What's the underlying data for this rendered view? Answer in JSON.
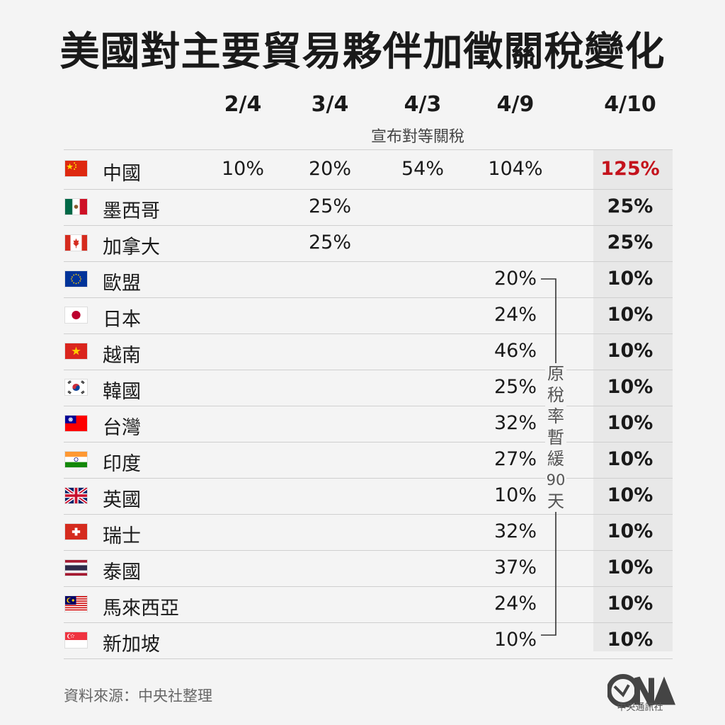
{
  "chart_data": {
    "type": "table",
    "title": "美國對主要貿易夥伴加徵關稅變化",
    "columns": [
      {
        "label": "2/4",
        "note": ""
      },
      {
        "label": "3/4",
        "note": ""
      },
      {
        "label": "4/3",
        "note": "宣布對等關稅"
      },
      {
        "label": "4/9",
        "note": ""
      },
      {
        "label": "4/10",
        "note": ""
      }
    ],
    "rows": [
      {
        "country": "中國",
        "flag": "china-flag",
        "values": [
          "10%",
          "20%",
          "54%",
          "104%"
        ],
        "latest": "125%",
        "highlight": "#c4121c"
      },
      {
        "country": "墨西哥",
        "flag": "mexico-flag",
        "values": [
          "",
          "25%",
          "",
          ""
        ],
        "latest": "25%"
      },
      {
        "country": "加拿大",
        "flag": "canada-flag",
        "values": [
          "",
          "25%",
          "",
          ""
        ],
        "latest": "25%"
      },
      {
        "country": "歐盟",
        "flag": "eu-flag",
        "values": [
          "",
          "",
          "",
          "20%"
        ],
        "latest": "10%"
      },
      {
        "country": "日本",
        "flag": "japan-flag",
        "values": [
          "",
          "",
          "",
          "24%"
        ],
        "latest": "10%"
      },
      {
        "country": "越南",
        "flag": "vietnam-flag",
        "values": [
          "",
          "",
          "",
          "46%"
        ],
        "latest": "10%"
      },
      {
        "country": "韓國",
        "flag": "korea-flag",
        "values": [
          "",
          "",
          "",
          "25%"
        ],
        "latest": "10%"
      },
      {
        "country": "台灣",
        "flag": "taiwan-flag",
        "values": [
          "",
          "",
          "",
          "32%"
        ],
        "latest": "10%"
      },
      {
        "country": "印度",
        "flag": "india-flag",
        "values": [
          "",
          "",
          "",
          "27%"
        ],
        "latest": "10%"
      },
      {
        "country": "英國",
        "flag": "uk-flag",
        "values": [
          "",
          "",
          "",
          "10%"
        ],
        "latest": "10%"
      },
      {
        "country": "瑞士",
        "flag": "switzerland-flag",
        "values": [
          "",
          "",
          "",
          "32%"
        ],
        "latest": "10%"
      },
      {
        "country": "泰國",
        "flag": "thailand-flag",
        "values": [
          "",
          "",
          "",
          "37%"
        ],
        "latest": "10%"
      },
      {
        "country": "馬來西亞",
        "flag": "malaysia-flag",
        "values": [
          "",
          "",
          "",
          "24%"
        ],
        "latest": "10%"
      },
      {
        "country": "新加坡",
        "flag": "singapore-flag",
        "values": [
          "",
          "",
          "",
          "10%"
        ],
        "latest": "10%"
      }
    ],
    "bracket_note": [
      "原",
      "稅",
      "率",
      "暫",
      "緩",
      "90",
      "天"
    ]
  },
  "footer": {
    "source": "資料來源：中央社整理",
    "logo_text": "中央通訊社",
    "logo_icon": "cna-logo-icon"
  }
}
